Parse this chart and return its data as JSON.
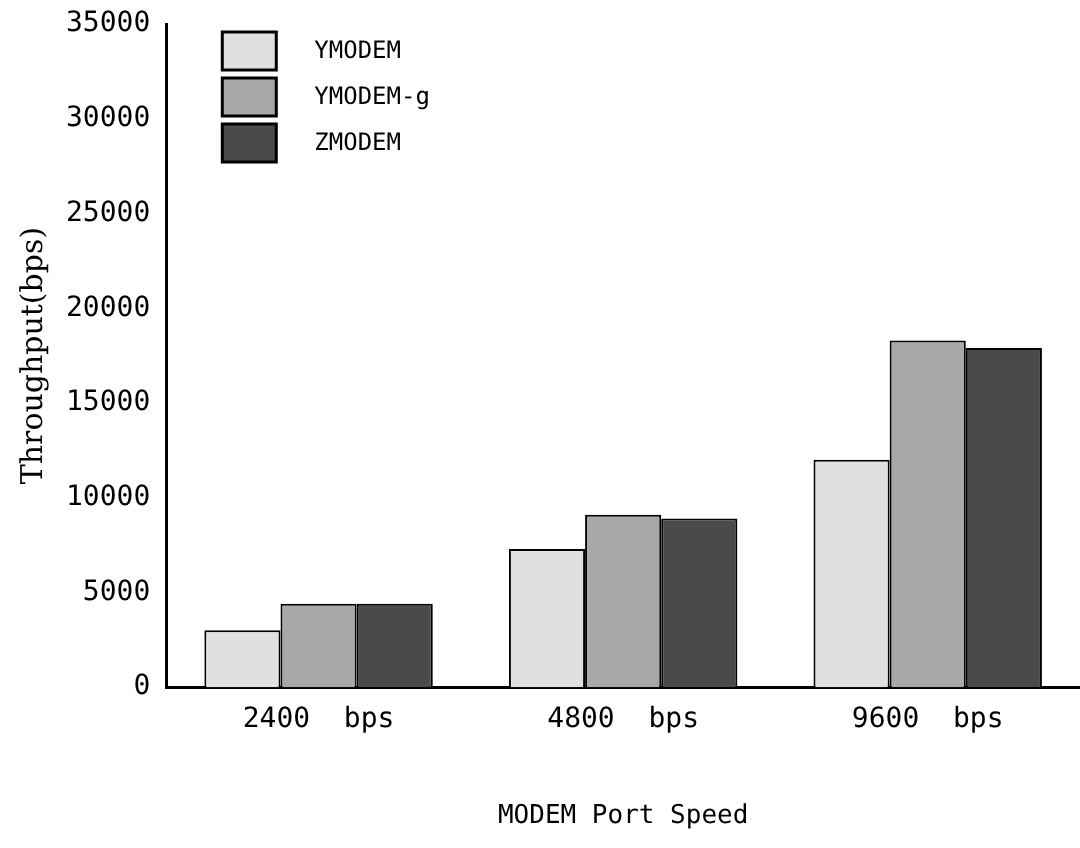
{
  "chart_data": {
    "type": "bar",
    "xlabel": "MODEM Port Speed",
    "ylabel": "Throughput(bps)",
    "categories": [
      "2400  bps",
      "4800  bps",
      "9600  bps"
    ],
    "series": [
      {
        "name": "YMODEM",
        "color": "#e0e0e0",
        "values": [
          3000,
          7300,
          12000
        ]
      },
      {
        "name": "YMODEM-g",
        "color": "#a8a8a8",
        "values": [
          4400,
          9100,
          18300
        ]
      },
      {
        "name": "ZMODEM",
        "color": "#4a4a4a",
        "values": [
          4400,
          8900,
          17900
        ]
      }
    ],
    "ylim": [
      0,
      35000
    ],
    "yticks": [
      0,
      5000,
      10000,
      15000,
      20000,
      25000,
      30000,
      35000
    ],
    "grid": false,
    "legend": "top left"
  }
}
